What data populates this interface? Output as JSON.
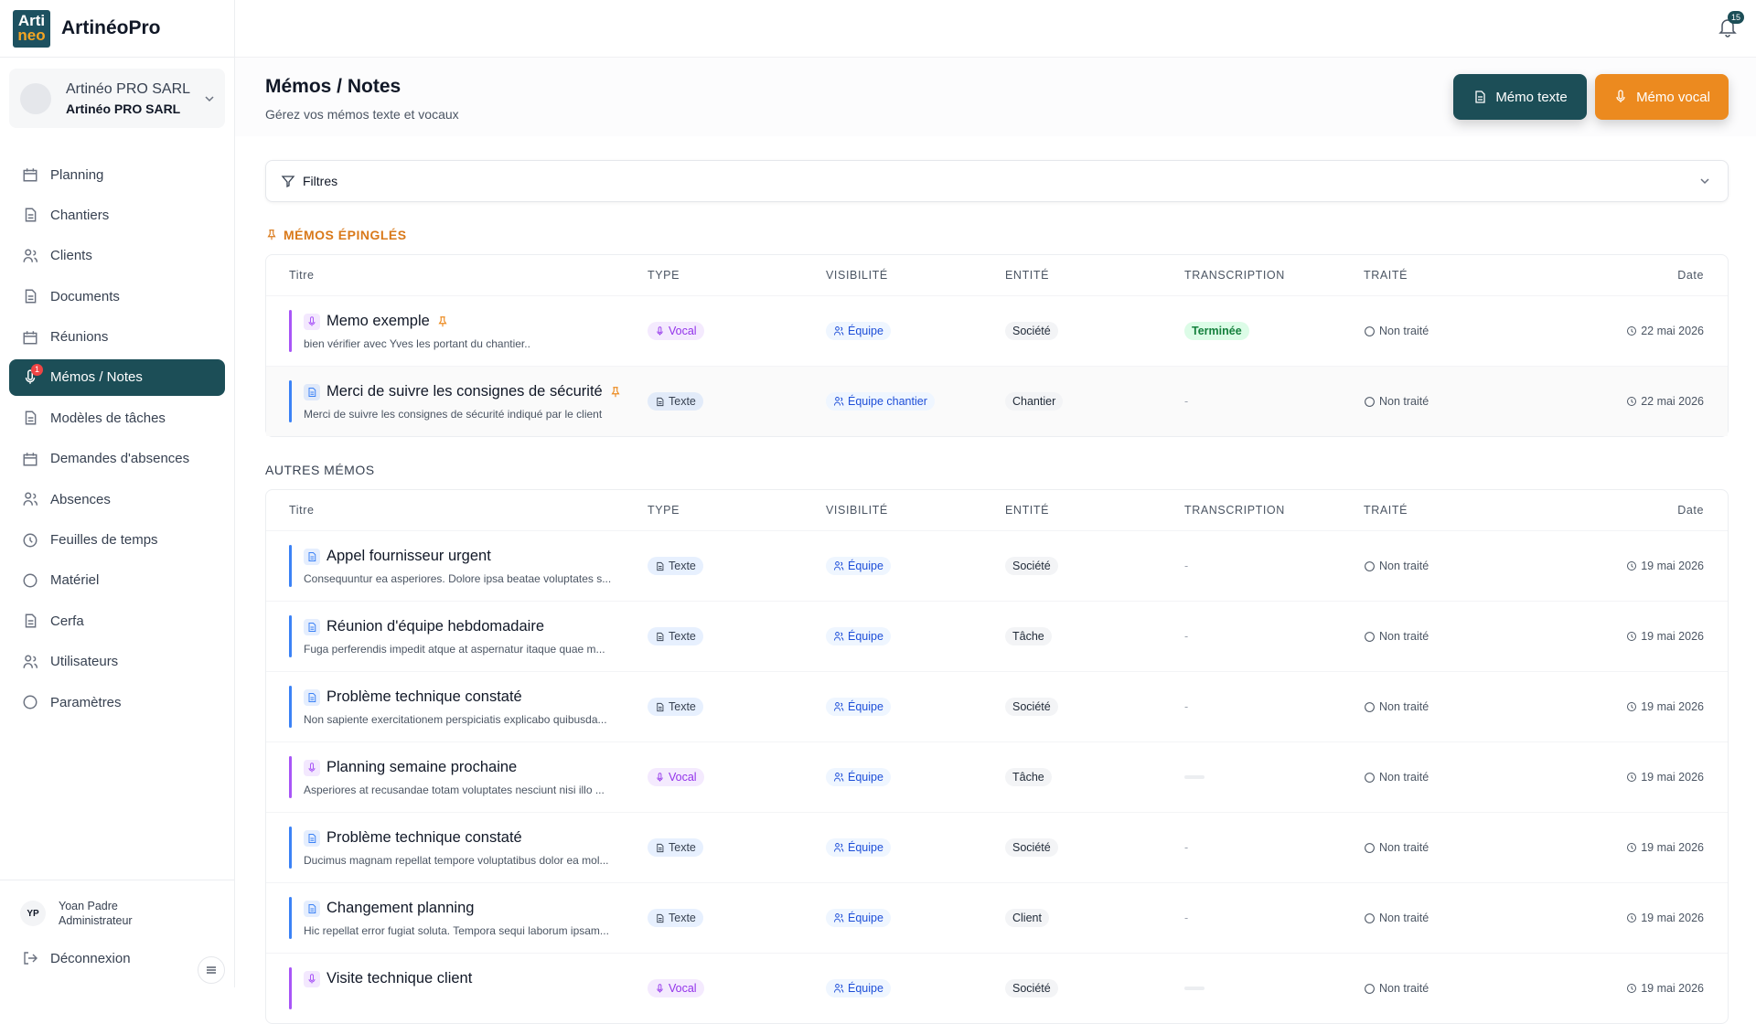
{
  "app": {
    "logo": [
      "Arti",
      "neo"
    ],
    "brand": "ArtinéoPro",
    "notifications": 15
  },
  "company": {
    "name": "Artinéo PRO SARL",
    "legal_name": "Artinéo PRO SARL"
  },
  "nav": {
    "items": [
      "Planning",
      "Chantiers",
      "Clients",
      "Documents",
      "Réunions",
      "Mémos / Notes",
      "Modèles de tâches",
      "Demandes d'absences",
      "Absences",
      "Feuilles de temps",
      "Matériel",
      "Cerfa",
      "Utilisateurs",
      "Paramètres"
    ],
    "active": 5,
    "active_badge": 1
  },
  "user": {
    "initials": "YP",
    "name": "Yoan Padre",
    "role": "Administrateur"
  },
  "logout": "Déconnexion",
  "page": {
    "title": "Mémos / Notes",
    "subtitle": "Gérez vos mémos texte et vocaux",
    "buttons": [
      {
        "label": "Mémo texte",
        "color": "#1c4e57"
      },
      {
        "label": "Mémo vocal",
        "color": "#ec8a1f"
      }
    ],
    "filters": "Filtres"
  },
  "sections": [
    {
      "title": "MÉMOS ÉPINGLÉS",
      "title_color": "#d9791a",
      "pinned": true,
      "columns": [
        "Titre",
        "TYPE",
        "VISIBILITÉ",
        "ENTITÉ",
        "TRANSCRIPTION",
        "TRAITÉ",
        "Date"
      ],
      "rows": [
        {
          "title": "Memo exemple",
          "description": "bien vérifier avec Yves les portant du chantier..",
          "type": "Vocal",
          "color": "#a855f7",
          "visibility": "Équipe",
          "entity": "Société",
          "transcription": "Terminée",
          "transcription_color": "#15803d",
          "status": "Non traité",
          "date": "22 mai 2026",
          "pinned": true
        },
        {
          "title": "Merci de suivre les consignes de sécurité",
          "description": "Merci de suivre les consignes de sécurité indiqué par le client",
          "type": "Texte",
          "color": "#3b82f6",
          "visibility": "Équipe chantier",
          "entity": "Chantier",
          "transcription": "-",
          "status": "Non traité",
          "date": "22 mai 2026",
          "pinned": true
        }
      ]
    },
    {
      "title": "AUTRES MÉMOS",
      "title_color": "#374151",
      "pinned": false,
      "columns": [
        "Titre",
        "TYPE",
        "VISIBILITÉ",
        "ENTITÉ",
        "TRANSCRIPTION",
        "TRAITÉ",
        "Date"
      ],
      "rows": [
        {
          "title": "Appel fournisseur urgent",
          "description": "Consequuntur ea asperiores. Dolore ipsa beatae voluptates s...",
          "type": "Texte",
          "color": "#3b82f6",
          "visibility": "Équipe",
          "entity": "Société",
          "transcription": "-",
          "status": "Non traité",
          "date": "19 mai 2026"
        },
        {
          "title": "Réunion d'équipe hebdomadaire",
          "description": "Fuga perferendis impedit atque at aspernatur itaque quae m...",
          "type": "Texte",
          "color": "#3b82f6",
          "visibility": "Équipe",
          "entity": "Tâche",
          "transcription": "-",
          "status": "Non traité",
          "date": "19 mai 2026"
        },
        {
          "title": "Problème technique constaté",
          "description": "Non sapiente exercitationem perspiciatis explicabo quibusda...",
          "type": "Texte",
          "color": "#3b82f6",
          "visibility": "Équipe",
          "entity": "Société",
          "transcription": "-",
          "status": "Non traité",
          "date": "19 mai 2026"
        },
        {
          "title": "Planning semaine prochaine",
          "description": "Asperiores at recusandae totam voluptates nesciunt nisi illo ...",
          "type": "Vocal",
          "color": "#a855f7",
          "visibility": "Équipe",
          "entity": "Tâche",
          "transcription": null,
          "status": "Non traité",
          "date": "19 mai 2026"
        },
        {
          "title": "Problème technique constaté",
          "description": "Ducimus magnam repellat tempore voluptatibus dolor ea mol...",
          "type": "Texte",
          "color": "#3b82f6",
          "visibility": "Équipe",
          "entity": "Société",
          "transcription": "-",
          "status": "Non traité",
          "date": "19 mai 2026"
        },
        {
          "title": "Changement planning",
          "description": "Hic repellat error fugiat soluta. Tempora sequi laborum ipsam...",
          "type": "Texte",
          "color": "#3b82f6",
          "visibility": "Équipe",
          "entity": "Client",
          "transcription": "-",
          "status": "Non traité",
          "date": "19 mai 2026"
        },
        {
          "title": "Visite technique client",
          "description": null,
          "type": "Vocal",
          "color": "#a855f7",
          "visibility": "Équipe",
          "entity": "Société",
          "transcription": null,
          "status": "Non traité",
          "date": "19 mai 2026"
        }
      ]
    }
  ]
}
